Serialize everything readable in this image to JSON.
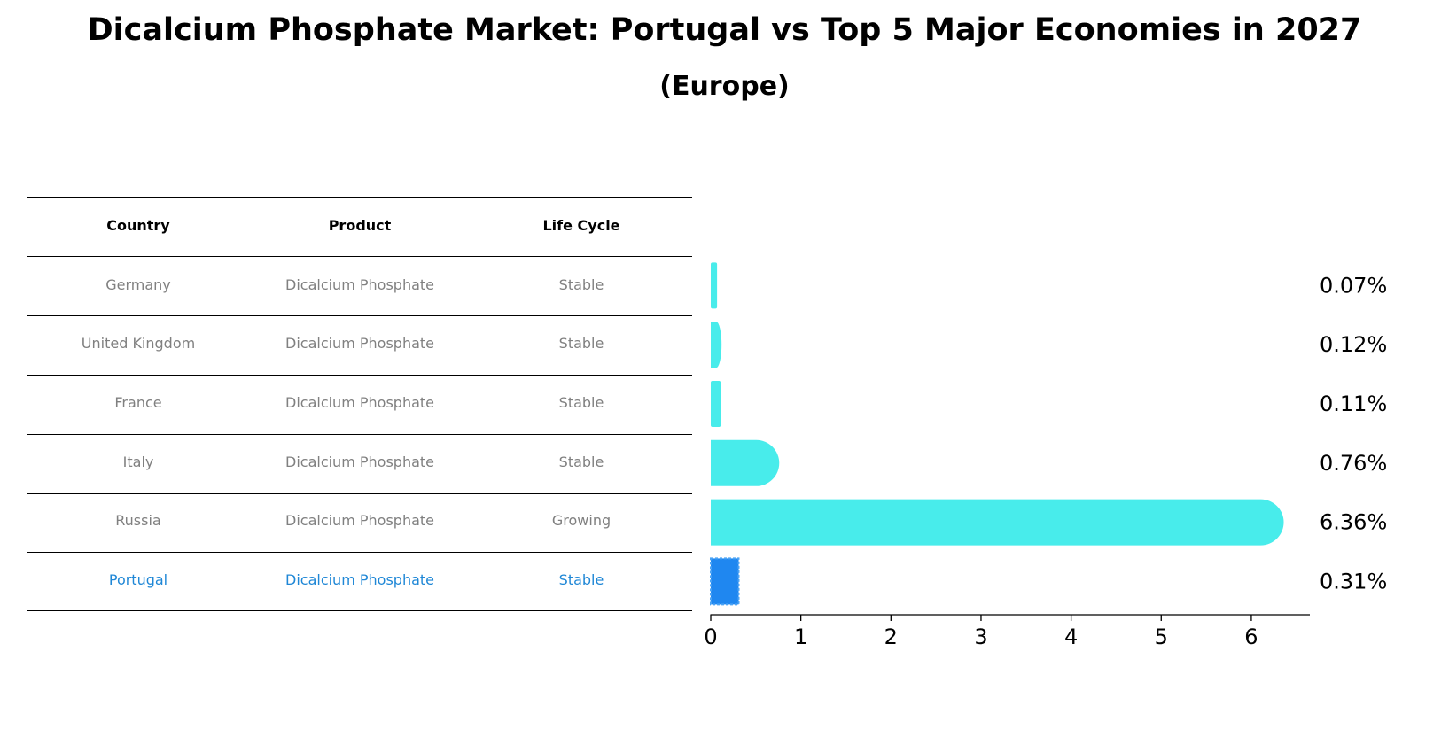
{
  "title": "Dicalcium Phosphate Market: Portugal vs Top 5 Major Economies in 2027",
  "subtitle": "(Europe)",
  "table": {
    "headers": [
      "Country",
      "Product",
      "Life Cycle"
    ],
    "rows": [
      [
        "Germany",
        "Dicalcium Phosphate",
        "Stable"
      ],
      [
        "United Kingdom",
        "Dicalcium Phosphate",
        "Stable"
      ],
      [
        "France",
        "Dicalcium Phosphate",
        "Stable"
      ],
      [
        "Italy",
        "Dicalcium Phosphate",
        "Stable"
      ],
      [
        "Russia",
        "Dicalcium Phosphate",
        "Growing"
      ],
      [
        "Portugal",
        "Dicalcium Phosphate",
        "Stable"
      ]
    ],
    "highlight_row": 5
  },
  "colors": {
    "bar": "#48eceb",
    "highlight": "#1f87f0",
    "highlight_text": "#1f87d6",
    "muted_text": "#808080"
  },
  "chart_data": {
    "type": "bar",
    "orientation": "horizontal",
    "categories": [
      "Germany",
      "United Kingdom",
      "France",
      "Italy",
      "Russia",
      "Portugal"
    ],
    "values": [
      0.07,
      0.12,
      0.11,
      0.76,
      6.36,
      0.31
    ],
    "value_labels": [
      "0.07%",
      "0.12%",
      "0.11%",
      "0.76%",
      "6.36%",
      "0.31%"
    ],
    "highlight": "Portugal",
    "xlim": [
      0,
      6.65
    ],
    "xticks": [
      0,
      1,
      2,
      3,
      4,
      5,
      6
    ],
    "xlabel": "",
    "ylabel": ""
  }
}
